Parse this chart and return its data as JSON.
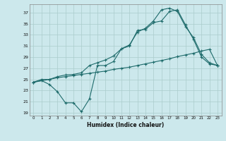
{
  "xlabel": "Humidex (Indice chaleur)",
  "bg_color": "#cce8ec",
  "grid_color": "#aacccc",
  "line_color": "#1e6b6b",
  "xlim": [
    -0.5,
    23.5
  ],
  "ylim": [
    18.5,
    38.5
  ],
  "xticks": [
    0,
    1,
    2,
    3,
    4,
    5,
    6,
    7,
    8,
    9,
    10,
    11,
    12,
    13,
    14,
    15,
    16,
    17,
    18,
    19,
    20,
    21,
    22,
    23
  ],
  "yticks": [
    19,
    21,
    23,
    25,
    27,
    29,
    31,
    33,
    35,
    37
  ],
  "line1_x": [
    0,
    1,
    2,
    3,
    4,
    5,
    6,
    7,
    8,
    9,
    10,
    11,
    12,
    13,
    14,
    15,
    16,
    17,
    18,
    19,
    20,
    21,
    22,
    23
  ],
  "line1_y": [
    24.5,
    24.8,
    24.1,
    22.8,
    20.8,
    20.8,
    19.2,
    21.5,
    27.5,
    27.5,
    28.2,
    30.5,
    31.0,
    33.8,
    34.0,
    35.2,
    35.5,
    37.2,
    37.5,
    34.8,
    32.2,
    29.0,
    27.8,
    27.5
  ],
  "line2_x": [
    0,
    2,
    3,
    4,
    5,
    6,
    7,
    8,
    9,
    10,
    11,
    12,
    13,
    14,
    15,
    16,
    17,
    18,
    19,
    20,
    21,
    22,
    23
  ],
  "line2_y": [
    24.5,
    25.0,
    25.3,
    25.5,
    25.7,
    25.9,
    26.1,
    26.3,
    26.5,
    26.8,
    27.0,
    27.2,
    27.5,
    27.8,
    28.1,
    28.4,
    28.7,
    29.1,
    29.4,
    29.7,
    30.1,
    30.4,
    27.5
  ],
  "line3_x": [
    0,
    1,
    2,
    3,
    4,
    5,
    6,
    7,
    8,
    9,
    10,
    11,
    12,
    13,
    14,
    15,
    16,
    17,
    18,
    19,
    20,
    21,
    22,
    23
  ],
  "line3_y": [
    24.5,
    25.0,
    25.0,
    25.5,
    25.8,
    25.9,
    26.2,
    27.5,
    28.0,
    28.5,
    29.2,
    30.5,
    31.2,
    33.5,
    34.2,
    35.5,
    37.5,
    37.8,
    37.2,
    34.5,
    32.5,
    29.5,
    28.0,
    27.5
  ]
}
